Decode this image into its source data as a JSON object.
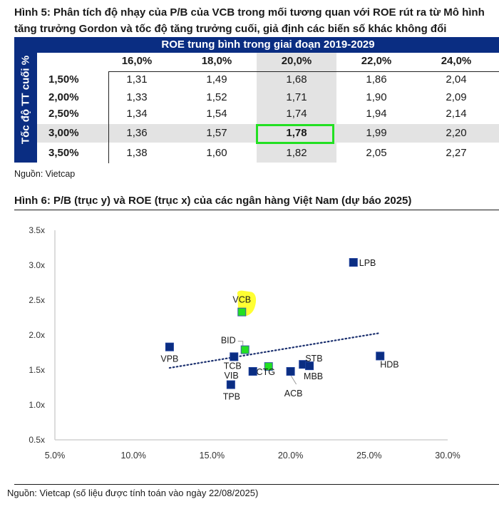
{
  "figure5": {
    "title": "Hình 5: Phân tích độ nhạy của P/B của VCB trong mối tương quan với ROE rút ra từ Mô hình tăng trưởng Gordon và tốc độ tăng trưởng cuối, giả định các biến số khác không đổi",
    "column_group_header": "ROE trung bình trong giai đoạn 2019-2029",
    "row_group_header": "Tốc độ TT cuối %",
    "columns": [
      "16,0%",
      "18,0%",
      "20,0%",
      "22,0%",
      "24,0%"
    ],
    "rows": [
      {
        "label": "1,50%",
        "values": [
          "1,31",
          "1,49",
          "1,68",
          "1,86",
          "2,04"
        ]
      },
      {
        "label": "2,00%",
        "values": [
          "1,33",
          "1,52",
          "1,71",
          "1,90",
          "2,09"
        ]
      },
      {
        "label": "2,50%",
        "values": [
          "1,34",
          "1,54",
          "1,74",
          "1,94",
          "2,14"
        ]
      },
      {
        "label": "3,00%",
        "values": [
          "1,36",
          "1,57",
          "1,78",
          "1,99",
          "2,20"
        ]
      },
      {
        "label": "3,50%",
        "values": [
          "1,38",
          "1,60",
          "1,82",
          "2,05",
          "2,27"
        ]
      }
    ],
    "highlight": {
      "row": "3,00%",
      "column": "20,0%",
      "value": "1,78",
      "color": "#22e022"
    },
    "source": "Nguồn: Vietcap"
  },
  "figure6": {
    "title": "Hình 6: P/B (trục y) và ROE (trục x) của các ngân hàng Việt Nam (dự báo 2025)",
    "source": "Nguồn: Vietcap (số liệu được tính toán vào ngày 22/08/2025)"
  },
  "colors": {
    "navy": "#0a2d82",
    "green": "#22e022",
    "highlight_yellow": "#ffff33",
    "shade": "#e3e3e3"
  },
  "chart_data": {
    "type": "scatter",
    "title": "Hình 6: P/B (trục y) và ROE (trục x) của các ngân hàng Việt Nam (dự báo 2025)",
    "xlabel": "ROE",
    "ylabel": "P/B",
    "xlim": [
      5.0,
      30.0
    ],
    "ylim": [
      0.5,
      3.5
    ],
    "x_ticks": [
      "5.0%",
      "10.0%",
      "15.0%",
      "20.0%",
      "25.0%",
      "30.0%"
    ],
    "y_ticks": [
      "0.5x",
      "1.0x",
      "1.5x",
      "2.0x",
      "2.5x",
      "3.0x",
      "3.5x"
    ],
    "grid": false,
    "points": [
      {
        "label": "LPB",
        "x": 24.0,
        "y": 3.04,
        "group": "other"
      },
      {
        "label": "VCB",
        "x": 16.9,
        "y": 2.33,
        "group": "state-owned",
        "highlighted": true
      },
      {
        "label": "VPB",
        "x": 12.3,
        "y": 1.83,
        "group": "other"
      },
      {
        "label": "BID",
        "x": 17.1,
        "y": 1.79,
        "group": "state-owned"
      },
      {
        "label": "TCB",
        "x": 16.4,
        "y": 1.69,
        "group": "other"
      },
      {
        "label": "HDB",
        "x": 25.7,
        "y": 1.7,
        "group": "other"
      },
      {
        "label": "STB",
        "x": 20.8,
        "y": 1.58,
        "group": "other"
      },
      {
        "label": "MBB",
        "x": 21.2,
        "y": 1.56,
        "group": "other"
      },
      {
        "label": "CTG",
        "x": 18.6,
        "y": 1.55,
        "group": "state-owned"
      },
      {
        "label": "VIB",
        "x": 17.6,
        "y": 1.48,
        "group": "other"
      },
      {
        "label": "ACB",
        "x": 20.0,
        "y": 1.48,
        "group": "other"
      },
      {
        "label": "TPB",
        "x": 16.2,
        "y": 1.29,
        "group": "other"
      }
    ],
    "trendline": {
      "style": "dotted",
      "x": [
        12.3,
        25.7
      ],
      "y": [
        1.53,
        2.03
      ]
    }
  }
}
